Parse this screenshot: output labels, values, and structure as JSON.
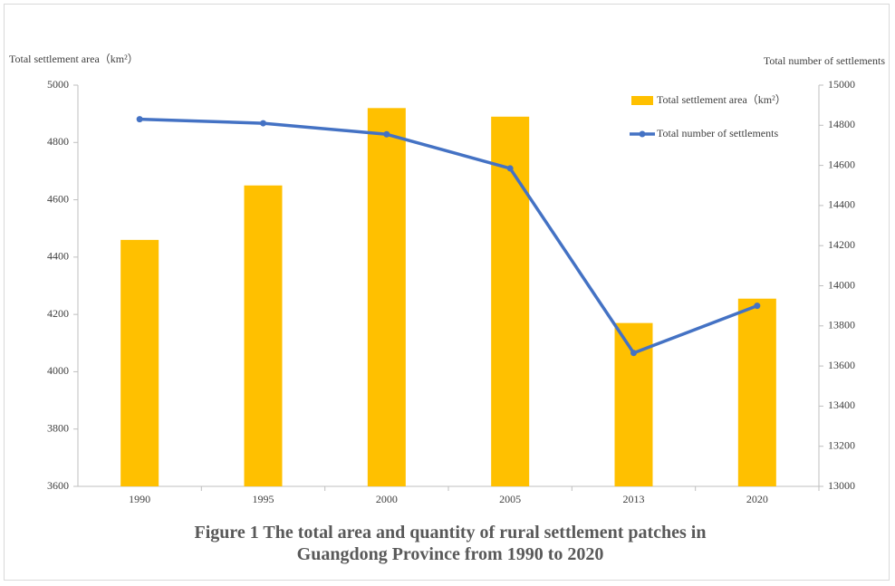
{
  "chart_data": {
    "type": "combo",
    "title": "Figure 1  The total area and quantity of rural settlement patches in Guangdong Province from 1990 to 2020",
    "ylabel": "Total settlement area（km²）",
    "y2label": "Total number of settlements",
    "categories": [
      "1990",
      "1995",
      "2000",
      "2005",
      "2013",
      "2020"
    ],
    "series": [
      {
        "name": "Total settlement area（km²）",
        "type": "bar",
        "color": "#ffc000",
        "values": [
          4460,
          4650,
          4920,
          4890,
          4170,
          4255
        ]
      },
      {
        "name": "Total number of settlements",
        "type": "line",
        "axis": "y2",
        "color": "#4472c4",
        "values": [
          14830,
          14810,
          14755,
          14585,
          13665,
          13900
        ]
      }
    ],
    "ylim": [
      3600,
      5000
    ],
    "yticks": [
      3600,
      3800,
      4000,
      4200,
      4400,
      4600,
      4800,
      5000
    ],
    "y2lim": [
      13000,
      15000
    ],
    "y2ticks": [
      13000,
      13200,
      13400,
      13600,
      13800,
      14000,
      14200,
      14400,
      14600,
      14800,
      15000
    ],
    "legend": "top-right"
  }
}
